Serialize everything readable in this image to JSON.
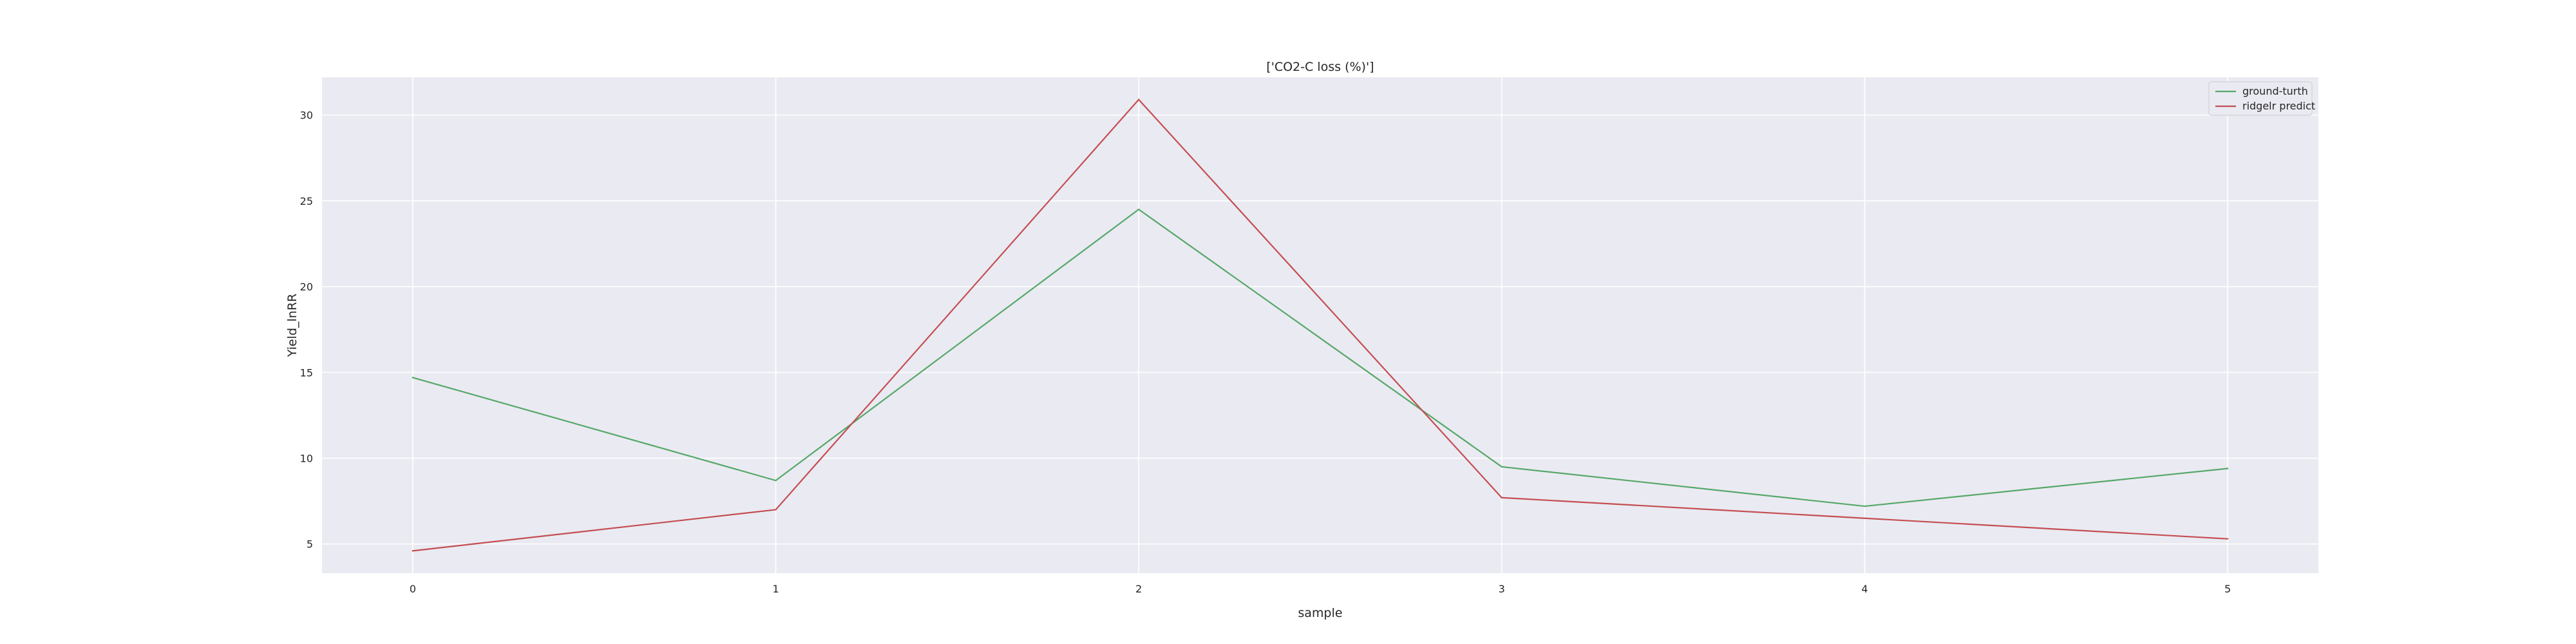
{
  "chart_data": {
    "type": "line",
    "title": "['CO2-C loss (%)']",
    "xlabel": "sample",
    "ylabel": "Yield_lnRR",
    "x": [
      0,
      1,
      2,
      3,
      4,
      5
    ],
    "xlim": [
      -0.25,
      5.25
    ],
    "ylim": [
      3.3,
      32.2
    ],
    "xticks": [
      0,
      1,
      2,
      3,
      4,
      5
    ],
    "yticks": [
      5,
      10,
      15,
      20,
      25,
      30
    ],
    "grid": true,
    "legend_position": "top-right",
    "series": [
      {
        "name": "ground-turth",
        "color": "#55a868",
        "values": [
          14.7,
          8.7,
          24.5,
          9.5,
          7.2,
          9.4
        ]
      },
      {
        "name": "ridgelr predict",
        "color": "#c44e52",
        "values": [
          4.6,
          7.0,
          30.9,
          7.7,
          6.5,
          5.3
        ]
      }
    ],
    "colors": {
      "plot_background": "#eaeaf2",
      "grid": "#ffffff",
      "legend_background": "#eaeaf2",
      "legend_border": "#cccccc"
    }
  }
}
